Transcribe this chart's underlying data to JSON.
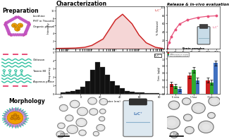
{
  "title_preparation": "Preparation",
  "title_characterization": "Characterization",
  "title_release": "Release & in-vivo evaluation",
  "title_morphology": "Morphology",
  "label_lecithine": "Lecithine",
  "label_pht": "PHT in Triacetin",
  "label_organic": "Organic phase",
  "label_chitosan": "Chitosan",
  "label_tween": "Tween 80",
  "label_aqueous": "Aqueous phase",
  "label_lnpcht": "L₂C⁺",
  "bg_color": "#ffffff",
  "pink_color": "#e8507a",
  "red_color": "#cc2020",
  "black_color": "#111111",
  "teal_color": "#30c0a0",
  "purple_color": "#c050c0",
  "orange_color": "#f0a000",
  "orange_inner": "#e89000",
  "green_color": "#30aa30",
  "blue_color": "#4070c0",
  "dls_x": [
    0.3,
    1,
    2,
    5,
    10,
    30,
    100,
    200,
    500,
    1000,
    2000,
    5000,
    10000
  ],
  "dls_y": [
    0.0,
    0.05,
    0.1,
    0.3,
    0.8,
    2.5,
    7.5,
    9.0,
    6.5,
    3.5,
    1.5,
    0.3,
    0.0
  ],
  "hist_bins": [
    -20,
    -15,
    -10,
    -5,
    0,
    5,
    10,
    15,
    20,
    25,
    30,
    35,
    40,
    45,
    50,
    55,
    60,
    65,
    70,
    75,
    80
  ],
  "hist_vals": [
    0.1,
    0.2,
    0.3,
    0.5,
    0.8,
    1.5,
    2.8,
    3.8,
    3.2,
    2.2,
    1.5,
    1.0,
    0.6,
    0.3,
    0.2,
    0.1,
    0.1,
    0.05,
    0.05,
    0.02
  ],
  "release_time": [
    0,
    5,
    10,
    20,
    30,
    50,
    75,
    100,
    120
  ],
  "release_y": [
    0,
    15,
    28,
    45,
    58,
    68,
    74,
    77,
    78
  ],
  "brain_cats": [
    "6 mins",
    "1 hour",
    "72 hours"
  ],
  "brain_lnpcht": [
    0.28,
    0.52,
    0.38
  ],
  "brain_commercial": [
    0.22,
    0.68,
    0.32
  ],
  "brain_pht": [
    0.14,
    0.38,
    0.88
  ],
  "bar_width": 0.22,
  "brain_err": [
    0.06,
    0.08,
    0.07
  ]
}
